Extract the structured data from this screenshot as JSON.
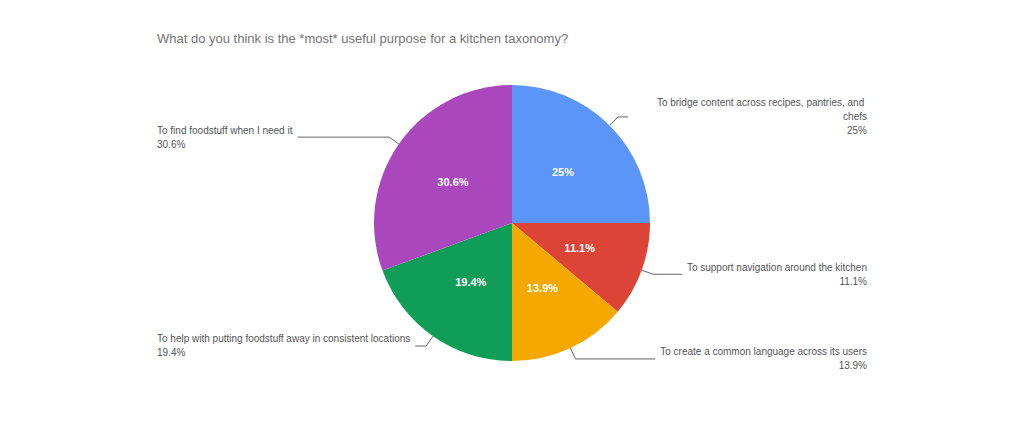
{
  "chart_data": {
    "type": "pie",
    "title": "What do you think is the *most* useful purpose for a kitchen taxonomy?",
    "categories": [
      "To bridge content across recipes, pantries, and chefs",
      "To support navigation around the kitchen",
      "To create a common language across its users",
      "To help with putting foodstuff away in consistent locations",
      "To find foodstuff when I need it"
    ],
    "values": [
      25,
      11.1,
      13.9,
      19.4,
      30.6
    ],
    "value_labels": [
      "25%",
      "11.1%",
      "13.9%",
      "19.4%",
      "30.6%"
    ],
    "colors": [
      "#5b95f7",
      "#db4437",
      "#f4a800",
      "#0f9d58",
      "#ab47bc"
    ],
    "data_labels": true
  }
}
